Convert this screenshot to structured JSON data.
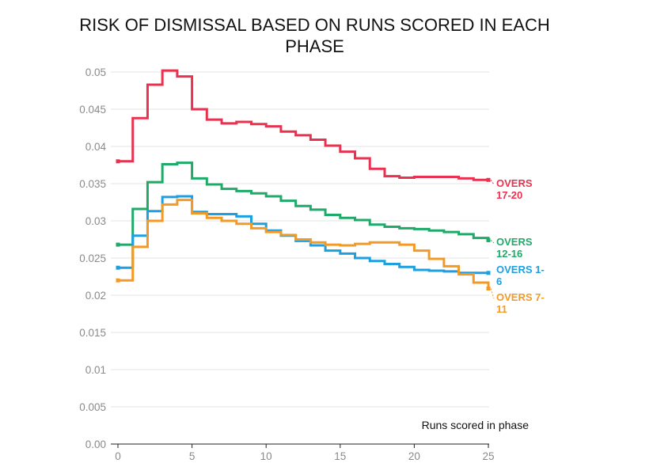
{
  "chart_data": {
    "type": "line",
    "title": "RISK OF DISMISSAL BASED ON RUNS SCORED IN EACH PHASE",
    "xlabel": "Runs scored in phase",
    "ylabel": "",
    "xlim": [
      0,
      25
    ],
    "ylim": [
      0,
      0.05
    ],
    "x_ticks": [
      0,
      5,
      10,
      15,
      20,
      25
    ],
    "x_tick_labels": [
      "0",
      "5",
      "10",
      "15",
      "20",
      "25"
    ],
    "y_ticks": [
      0,
      0.005,
      0.01,
      0.015,
      0.02,
      0.025,
      0.03,
      0.035,
      0.04,
      0.045,
      0.05
    ],
    "y_tick_labels": [
      "0.00",
      "0.005",
      "0.01",
      "0.015",
      "0.02",
      "0.025",
      "0.03",
      "0.035",
      "0.04",
      "0.045",
      "0.05"
    ],
    "grid": true,
    "step": true,
    "legend": "inline-right",
    "x": [
      0,
      1,
      2,
      3,
      4,
      5,
      6,
      7,
      8,
      9,
      10,
      11,
      12,
      13,
      14,
      15,
      16,
      17,
      18,
      19,
      20,
      21,
      22,
      23,
      24,
      25
    ],
    "series": [
      {
        "name": "OVERS 17-20",
        "label_lines": [
          "OVERS",
          "17-20"
        ],
        "color": "#e8324f",
        "values": [
          0.038,
          0.0438,
          0.0483,
          0.0502,
          0.0494,
          0.045,
          0.0436,
          0.0431,
          0.0433,
          0.043,
          0.0427,
          0.042,
          0.0415,
          0.0409,
          0.0401,
          0.0393,
          0.0384,
          0.037,
          0.036,
          0.0358,
          0.0359,
          0.0359,
          0.0359,
          0.0357,
          0.0355,
          0.0355
        ]
      },
      {
        "name": "OVERS 12-16",
        "label_lines": [
          "OVERS",
          "12-16"
        ],
        "color": "#1faa6a",
        "values": [
          0.0268,
          0.0316,
          0.0352,
          0.0376,
          0.0378,
          0.0357,
          0.0349,
          0.0343,
          0.034,
          0.0337,
          0.0333,
          0.0327,
          0.032,
          0.0315,
          0.0308,
          0.0304,
          0.0301,
          0.0295,
          0.0292,
          0.029,
          0.0289,
          0.0287,
          0.0285,
          0.0282,
          0.0277,
          0.0274
        ]
      },
      {
        "name": "OVERS 1-6",
        "label_lines": [
          "OVERS 1-",
          "6"
        ],
        "color": "#1d9fe0",
        "values": [
          0.0237,
          0.028,
          0.0313,
          0.0332,
          0.0333,
          0.0312,
          0.0309,
          0.0309,
          0.0306,
          0.0296,
          0.0287,
          0.028,
          0.0273,
          0.0267,
          0.026,
          0.0256,
          0.025,
          0.0246,
          0.0242,
          0.0238,
          0.0234,
          0.0233,
          0.0232,
          0.023,
          0.023,
          0.023
        ]
      },
      {
        "name": "OVERS 7-11",
        "label_lines": [
          "OVERS 7-",
          "11"
        ],
        "color": "#f39a26",
        "values": [
          0.022,
          0.0265,
          0.03,
          0.0322,
          0.0328,
          0.031,
          0.0304,
          0.03,
          0.0296,
          0.029,
          0.0285,
          0.0281,
          0.0275,
          0.0271,
          0.0268,
          0.0267,
          0.0269,
          0.0271,
          0.0271,
          0.0268,
          0.026,
          0.0249,
          0.0239,
          0.0228,
          0.0217,
          0.0209
        ]
      }
    ]
  }
}
